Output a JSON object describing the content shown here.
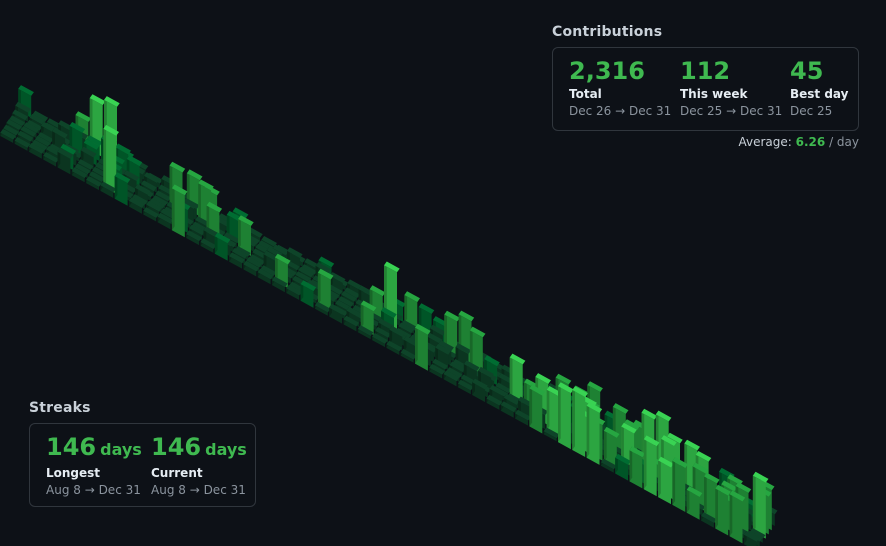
{
  "contributions": {
    "title": "Contributions",
    "stats": [
      {
        "value": "2,316",
        "label": "Total",
        "range": "Dec 26 → Dec 31"
      },
      {
        "value": "112",
        "label": "This week",
        "range": "Dec 25 → Dec 31"
      },
      {
        "value": "45",
        "label": "Best day",
        "range": "Dec 25"
      }
    ],
    "average_label": "Average:",
    "average_value": "6.26",
    "average_unit": "/ day"
  },
  "streaks": {
    "title": "Streaks",
    "longest": {
      "value": "146",
      "unit": "days",
      "label": "Longest",
      "range": "Aug 8 → Dec 31"
    },
    "current": {
      "value": "146",
      "unit": "days",
      "label": "Current",
      "range": "Aug 8 → Dec 31"
    }
  },
  "colors": {
    "background": "#0d1117",
    "accent": "#3fb950",
    "levels": [
      "#0e4429",
      "#006d32",
      "#26a641",
      "#39d353"
    ]
  },
  "chart_data": {
    "type": "bar",
    "style": "isometric 3d contribution calendar",
    "weeks": 53,
    "days_per_week": 7,
    "title": "",
    "xlabel": "",
    "ylabel": ""
  }
}
